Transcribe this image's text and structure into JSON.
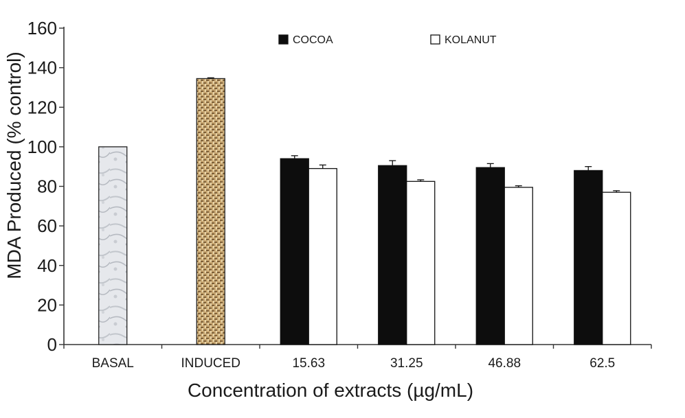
{
  "chart_data": {
    "type": "bar",
    "xlabel": "Concentration of extracts (µg/mL)",
    "ylabel": "MDA Produced (% control)",
    "ylim": [
      0,
      160
    ],
    "yticks": [
      0,
      20,
      40,
      60,
      80,
      100,
      120,
      140,
      160
    ],
    "categories": [
      "BASAL",
      "INDUCED",
      "15.63",
      "31.25",
      "46.88",
      "62.5"
    ],
    "controls": [
      {
        "category": "BASAL",
        "value": 100,
        "error": 0,
        "fill": "marble-grey"
      },
      {
        "category": "INDUCED",
        "value": 134.5,
        "error": 0.4,
        "fill": "brown-weave"
      }
    ],
    "series": [
      {
        "name": "COCOA",
        "color": "#0d0d0d",
        "values": [
          null,
          null,
          94,
          90.5,
          89.5,
          88
        ],
        "errors": [
          null,
          null,
          1.5,
          2.5,
          2.0,
          2.0
        ]
      },
      {
        "name": "KOLANUT",
        "color": "#ffffff",
        "values": [
          null,
          null,
          89,
          82.5,
          79.5,
          77
        ],
        "errors": [
          null,
          null,
          1.8,
          0.8,
          0.8,
          0.8
        ]
      }
    ],
    "legend": {
      "position": "top-center",
      "orientation": "horizontal"
    },
    "grid": false
  }
}
